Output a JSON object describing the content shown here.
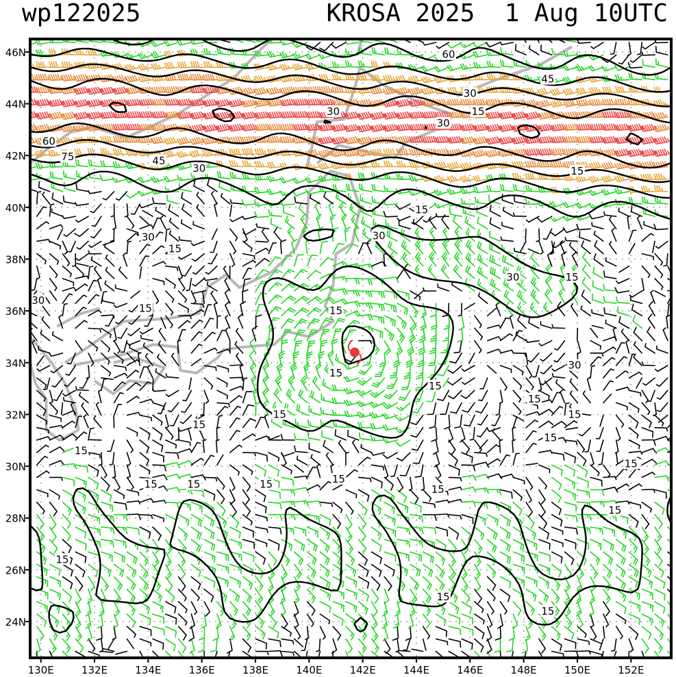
{
  "header": {
    "storm_id": "wp122025",
    "storm_title": "KROSA 2025  1 Aug 10UTC"
  },
  "axes": {
    "lon_labels": [
      "130E",
      "132E",
      "134E",
      "136E",
      "138E",
      "140E",
      "142E",
      "144E",
      "146E",
      "148E",
      "150E",
      "152E"
    ],
    "lat_labels": [
      "46N",
      "44N",
      "42N",
      "40N",
      "38N",
      "36N",
      "34N",
      "32N",
      "30N",
      "28N",
      "26N",
      "24N"
    ]
  },
  "map": {
    "lon_range": [
      129.6,
      153.5
    ],
    "lat_range": [
      22.6,
      46.5
    ],
    "storm_center": {
      "lon": 141.7,
      "lat": 34.4
    },
    "contour_labels": [
      {
        "text": "60",
        "lon": 145.2,
        "lat": 45.9
      },
      {
        "text": "45",
        "lon": 148.9,
        "lat": 44.95
      },
      {
        "text": "30",
        "lon": 146.0,
        "lat": 44.4
      },
      {
        "text": "15",
        "lon": 146.3,
        "lat": 43.7
      },
      {
        "text": "30",
        "lon": 140.9,
        "lat": 43.7
      },
      {
        "text": "30",
        "lon": 145.0,
        "lat": 43.25
      },
      {
        "text": "60",
        "lon": 130.3,
        "lat": 42.55
      },
      {
        "text": "75",
        "lon": 131.0,
        "lat": 41.95
      },
      {
        "text": "45",
        "lon": 134.4,
        "lat": 41.8
      },
      {
        "text": "30",
        "lon": 135.9,
        "lat": 41.5
      },
      {
        "text": "15",
        "lon": 150.0,
        "lat": 41.4
      },
      {
        "text": "15",
        "lon": 144.2,
        "lat": 39.9
      },
      {
        "text": "30",
        "lon": 134.0,
        "lat": 38.85
      },
      {
        "text": "15",
        "lon": 135.0,
        "lat": 38.4
      },
      {
        "text": "30",
        "lon": 142.6,
        "lat": 38.9
      },
      {
        "text": "30",
        "lon": 147.6,
        "lat": 37.3
      },
      {
        "text": "15",
        "lon": 149.8,
        "lat": 37.3
      },
      {
        "text": "30",
        "lon": 129.9,
        "lat": 36.4
      },
      {
        "text": "15",
        "lon": 133.9,
        "lat": 36.1
      },
      {
        "text": "15",
        "lon": 141.0,
        "lat": 36.0
      },
      {
        "text": "15",
        "lon": 141.0,
        "lat": 33.6
      },
      {
        "text": "30",
        "lon": 149.9,
        "lat": 33.9
      },
      {
        "text": "15",
        "lon": 144.7,
        "lat": 33.1
      },
      {
        "text": "15",
        "lon": 148.4,
        "lat": 32.6
      },
      {
        "text": "15",
        "lon": 138.9,
        "lat": 32.0
      },
      {
        "text": "15",
        "lon": 149.9,
        "lat": 32.0
      },
      {
        "text": "15",
        "lon": 135.9,
        "lat": 31.6
      },
      {
        "text": "15",
        "lon": 131.5,
        "lat": 30.6
      },
      {
        "text": "15",
        "lon": 149.0,
        "lat": 31.1
      },
      {
        "text": "15",
        "lon": 152.0,
        "lat": 30.1
      },
      {
        "text": "15",
        "lon": 134.1,
        "lat": 29.3
      },
      {
        "text": "15",
        "lon": 135.7,
        "lat": 29.3
      },
      {
        "text": "15",
        "lon": 138.4,
        "lat": 29.3
      },
      {
        "text": "15",
        "lon": 141.1,
        "lat": 29.5
      },
      {
        "text": "15",
        "lon": 144.8,
        "lat": 29.1
      },
      {
        "text": "15",
        "lon": 151.4,
        "lat": 28.3
      },
      {
        "text": "15",
        "lon": 130.8,
        "lat": 26.4
      },
      {
        "text": "15",
        "lon": 145.0,
        "lat": 24.95
      },
      {
        "text": "15",
        "lon": 148.9,
        "lat": 24.4
      }
    ]
  },
  "style": {
    "wind_colors": [
      "#000000",
      "#1fd61f",
      "#e8a432",
      "#e88a3c",
      "#ee4646",
      "#b0b0b0"
    ],
    "coast_color": "#b8b8b8",
    "contour_color": "#000000",
    "storm_color": "#e83a3a",
    "grid_color": "#b4b4b4"
  }
}
